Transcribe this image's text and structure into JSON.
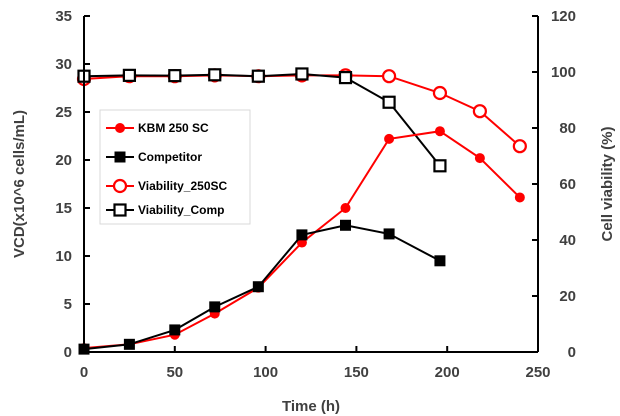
{
  "chart_data": {
    "type": "line",
    "xlabel": "Time (h)",
    "ylabel": "VCD(x10^6 cells/mL)",
    "y2label": "Cell viability (%)",
    "xlim": [
      0,
      250
    ],
    "ylim": [
      0,
      35
    ],
    "y2lim": [
      0,
      120
    ],
    "xticks": [
      0,
      50,
      100,
      150,
      200,
      250
    ],
    "yticks": [
      0,
      5,
      10,
      15,
      20,
      25,
      30,
      35
    ],
    "y2ticks": [
      0,
      20,
      40,
      60,
      80,
      100,
      120
    ],
    "grid": false,
    "legend_position": "left",
    "series": [
      {
        "name": "KBM 250 SC",
        "axis": "left",
        "color": "#ff0000",
        "marker": "filled-circle",
        "x": [
          0,
          25,
          50,
          72,
          96,
          120,
          144,
          168,
          196,
          218,
          240
        ],
        "values": [
          0.4,
          0.8,
          1.8,
          4.0,
          6.7,
          11.4,
          15.0,
          22.2,
          23.0,
          20.2,
          16.1
        ]
      },
      {
        "name": "Competitor",
        "axis": "left",
        "color": "#000000",
        "marker": "filled-square",
        "x": [
          0,
          25,
          50,
          72,
          96,
          120,
          144,
          168,
          196
        ],
        "values": [
          0.3,
          0.8,
          2.3,
          4.7,
          6.8,
          12.2,
          13.2,
          12.3,
          9.5
        ]
      },
      {
        "name": "Viability_250SC",
        "axis": "right",
        "color": "#ff0000",
        "marker": "open-circle",
        "x": [
          0,
          25,
          50,
          72,
          96,
          120,
          144,
          168,
          196,
          218,
          240
        ],
        "values": [
          97.5,
          98.5,
          98.5,
          98.8,
          98.5,
          98.8,
          98.8,
          98.5,
          92.5,
          86.0,
          73.5
        ]
      },
      {
        "name": "Viability_Comp",
        "axis": "right",
        "color": "#000000",
        "marker": "open-square",
        "x": [
          0,
          25,
          50,
          72,
          96,
          120,
          144,
          168,
          196
        ],
        "values": [
          98.5,
          98.8,
          98.7,
          99.0,
          98.5,
          99.3,
          98.0,
          89.2,
          66.5
        ]
      }
    ]
  }
}
